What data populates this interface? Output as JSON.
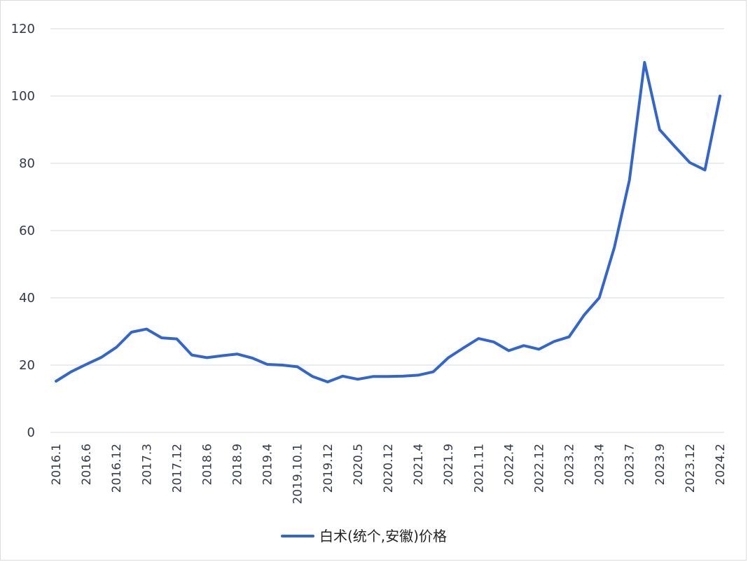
{
  "chart_data": {
    "type": "line",
    "ylim": [
      0,
      120
    ],
    "yticks": [
      "0",
      "20",
      "40",
      "60",
      "80",
      "100",
      "120"
    ],
    "x_tick_labels": [
      "2016.1",
      "2016.6",
      "2016.12",
      "2017.3",
      "2017.12",
      "2018.6",
      "2018.9",
      "2019.4",
      "2019.10.1",
      "2019.12",
      "2020.5",
      "2020.12",
      "2021.4",
      "2021.9",
      "2021.11",
      "2022.4",
      "2022.12",
      "2023.2",
      "2023.4",
      "2023.7",
      "2023.9",
      "2023.12",
      "2024.2"
    ],
    "grid": true,
    "legend_position": "bottom-center",
    "colors": {
      "series": "#3366cc",
      "grid": "#d3d8e2",
      "axis_text": "#333a44"
    },
    "series": [
      {
        "name": "白术(统个,安徽)价格",
        "values": [
          15.2,
          18.0,
          20.2,
          22.3,
          25.3,
          29.8,
          30.7,
          28.1,
          27.8,
          23.0,
          22.2,
          22.8,
          23.3,
          22.1,
          20.2,
          20.0,
          19.5,
          16.6,
          15.0,
          16.7,
          15.8,
          16.6,
          16.6,
          16.7,
          17.0,
          18.0,
          22.2,
          25.1,
          27.9,
          26.9,
          24.3,
          25.8,
          24.7,
          27.0,
          28.4,
          34.9,
          40.0,
          55.0,
          75.0,
          110.0,
          90.0,
          85.0,
          80.2,
          78.0,
          100.0
        ]
      }
    ]
  }
}
